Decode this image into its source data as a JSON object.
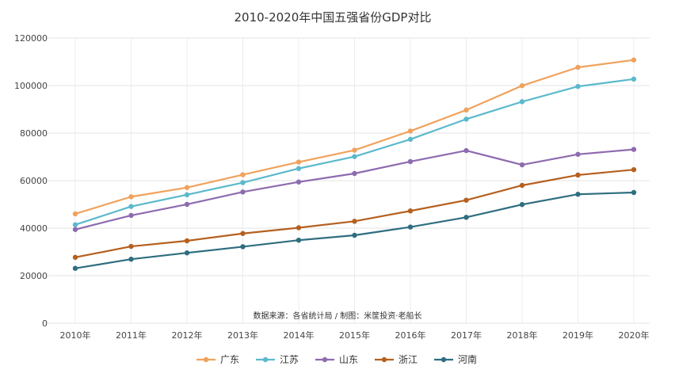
{
  "chart_data": {
    "type": "line",
    "title": "2010-2020年中国五强省份GDP对比",
    "source_note": "数据来源：各省统计局 / 制图：米筐投资·老船长",
    "xlabel": "",
    "ylabel": "",
    "categories": [
      "2010年",
      "2011年",
      "2012年",
      "2013年",
      "2014年",
      "2015年",
      "2016年",
      "2017年",
      "2018年",
      "2019年",
      "2020年"
    ],
    "ylim": [
      0,
      120000
    ],
    "yticks": [
      "0",
      "20000",
      "40000",
      "60000",
      "80000",
      "100000",
      "120000"
    ],
    "grid": true,
    "legend_position": "bottom",
    "series": [
      {
        "name": "广东",
        "color": "#f0a25c",
        "values": [
          46013,
          53210,
          57068,
          62475,
          67810,
          72813,
          80855,
          89705,
          99945,
          107671,
          110761
        ]
      },
      {
        "name": "江苏",
        "color": "#5bb9cc",
        "values": [
          41425,
          49110,
          54058,
          59162,
          65088,
          70116,
          77388,
          85870,
          93208,
          99632,
          102719
        ]
      },
      {
        "name": "山东",
        "color": "#8e6bb0",
        "values": [
          39416,
          45362,
          50013,
          55230,
          59427,
          63002,
          68024,
          72634,
          66649,
          71068,
          73129
        ]
      },
      {
        "name": "浙江",
        "color": "#b5601f",
        "values": [
          27722,
          32319,
          34665,
          37757,
          40173,
          42886,
          47251,
          51768,
          58003,
          62352,
          64613
        ]
      },
      {
        "name": "河南",
        "color": "#2f6e80",
        "values": [
          23092,
          26931,
          29599,
          32191,
          34938,
          37002,
          40472,
          44553,
          49936,
          54259,
          54997
        ]
      }
    ]
  }
}
